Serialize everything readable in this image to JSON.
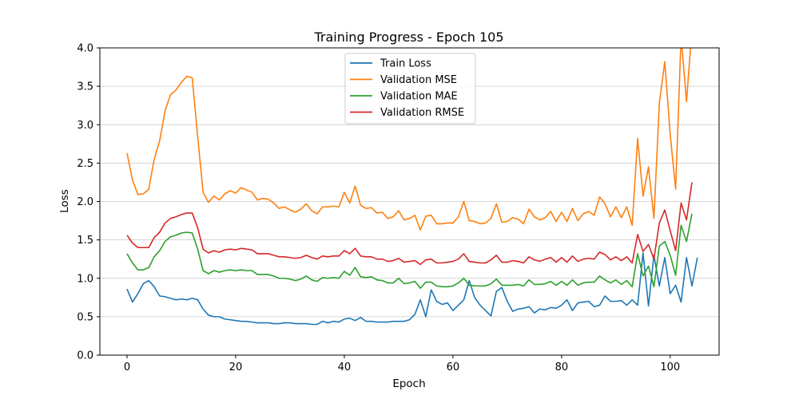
{
  "chart_data": {
    "type": "line",
    "title": "Training Progress - Epoch 105",
    "xlabel": "Epoch",
    "ylabel": "Loss",
    "xlim": [
      -5,
      109
    ],
    "ylim": [
      0,
      4.0
    ],
    "xticks": [
      0,
      20,
      40,
      60,
      80,
      100
    ],
    "yticks": [
      0.0,
      0.5,
      1.0,
      1.5,
      2.0,
      2.5,
      3.0,
      3.5,
      4.0
    ],
    "ytick_labels": [
      "0.0",
      "0.5",
      "1.0",
      "1.5",
      "2.0",
      "2.5",
      "3.0",
      "3.5",
      "4.0"
    ],
    "grid": "y",
    "legend_position": "top-center",
    "series": [
      {
        "name": "Train Loss",
        "color": "#1f77b4",
        "values": [
          0.86,
          0.69,
          0.8,
          0.93,
          0.97,
          0.89,
          0.77,
          0.76,
          0.74,
          0.72,
          0.73,
          0.72,
          0.74,
          0.72,
          0.6,
          0.52,
          0.5,
          0.5,
          0.47,
          0.46,
          0.45,
          0.44,
          0.44,
          0.43,
          0.42,
          0.42,
          0.42,
          0.41,
          0.41,
          0.42,
          0.42,
          0.41,
          0.41,
          0.41,
          0.4,
          0.4,
          0.44,
          0.42,
          0.44,
          0.43,
          0.47,
          0.48,
          0.45,
          0.49,
          0.44,
          0.44,
          0.43,
          0.43,
          0.43,
          0.44,
          0.44,
          0.44,
          0.46,
          0.53,
          0.72,
          0.5,
          0.85,
          0.7,
          0.66,
          0.68,
          0.58,
          0.65,
          0.72,
          0.97,
          0.75,
          0.65,
          0.58,
          0.51,
          0.83,
          0.88,
          0.7,
          0.57,
          0.6,
          0.61,
          0.63,
          0.55,
          0.6,
          0.59,
          0.62,
          0.61,
          0.65,
          0.72,
          0.58,
          0.68,
          0.69,
          0.7,
          0.63,
          0.65,
          0.77,
          0.7,
          0.7,
          0.71,
          0.65,
          0.72,
          0.65,
          1.33,
          0.64,
          1.3,
          0.9,
          1.27,
          0.8,
          0.91,
          0.69,
          1.27,
          0.9,
          1.27
        ]
      },
      {
        "name": "Validation MSE",
        "color": "#ff7f0e",
        "values": [
          2.63,
          2.28,
          2.09,
          2.1,
          2.16,
          2.55,
          2.79,
          3.18,
          3.39,
          3.45,
          3.55,
          3.63,
          3.61,
          2.85,
          2.12,
          1.99,
          2.07,
          2.02,
          2.1,
          2.14,
          2.11,
          2.18,
          2.15,
          2.12,
          2.02,
          2.04,
          2.03,
          1.98,
          1.91,
          1.93,
          1.89,
          1.86,
          1.9,
          1.97,
          1.88,
          1.84,
          1.93,
          1.93,
          1.94,
          1.93,
          2.12,
          1.98,
          2.2,
          1.95,
          1.91,
          1.92,
          1.85,
          1.86,
          1.78,
          1.8,
          1.88,
          1.76,
          1.78,
          1.82,
          1.63,
          1.81,
          1.82,
          1.71,
          1.71,
          1.72,
          1.72,
          1.8,
          2.0,
          1.75,
          1.74,
          1.71,
          1.72,
          1.78,
          1.97,
          1.73,
          1.74,
          1.79,
          1.77,
          1.71,
          1.9,
          1.8,
          1.76,
          1.79,
          1.87,
          1.74,
          1.86,
          1.74,
          1.91,
          1.75,
          1.84,
          1.87,
          1.82,
          2.06,
          1.97,
          1.8,
          1.93,
          1.79,
          1.93,
          1.69,
          2.82,
          2.07,
          2.45,
          1.78,
          3.28,
          3.82,
          2.87,
          2.16,
          4.15,
          3.3,
          4.25
        ]
      },
      {
        "name": "Validation MAE",
        "color": "#2ca02c",
        "values": [
          1.32,
          1.2,
          1.11,
          1.11,
          1.14,
          1.28,
          1.36,
          1.48,
          1.54,
          1.56,
          1.59,
          1.6,
          1.59,
          1.38,
          1.1,
          1.06,
          1.1,
          1.08,
          1.1,
          1.11,
          1.1,
          1.11,
          1.1,
          1.1,
          1.05,
          1.05,
          1.05,
          1.03,
          1.0,
          1.0,
          0.99,
          0.97,
          0.99,
          1.03,
          0.98,
          0.96,
          1.01,
          1.0,
          1.01,
          1.0,
          1.09,
          1.04,
          1.14,
          1.02,
          1.01,
          1.02,
          0.98,
          0.97,
          0.94,
          0.94,
          1.0,
          0.93,
          0.94,
          0.96,
          0.87,
          0.95,
          0.95,
          0.9,
          0.89,
          0.89,
          0.9,
          0.94,
          1.0,
          0.91,
          0.9,
          0.9,
          0.9,
          0.93,
          0.99,
          0.91,
          0.91,
          0.91,
          0.92,
          0.9,
          0.98,
          0.92,
          0.92,
          0.93,
          0.96,
          0.91,
          0.96,
          0.91,
          0.98,
          0.91,
          0.94,
          0.95,
          0.95,
          1.03,
          0.98,
          0.94,
          0.98,
          0.92,
          0.97,
          0.89,
          1.32,
          1.03,
          1.16,
          0.89,
          1.42,
          1.48,
          1.3,
          1.04,
          1.69,
          1.48,
          1.84
        ]
      },
      {
        "name": "Validation RMSE",
        "color": "#d62728",
        "values": [
          1.56,
          1.46,
          1.4,
          1.4,
          1.4,
          1.53,
          1.6,
          1.72,
          1.78,
          1.8,
          1.83,
          1.85,
          1.85,
          1.66,
          1.38,
          1.33,
          1.36,
          1.34,
          1.37,
          1.38,
          1.37,
          1.39,
          1.38,
          1.37,
          1.32,
          1.32,
          1.32,
          1.3,
          1.28,
          1.28,
          1.27,
          1.26,
          1.27,
          1.3,
          1.27,
          1.25,
          1.29,
          1.28,
          1.29,
          1.29,
          1.36,
          1.32,
          1.39,
          1.29,
          1.28,
          1.28,
          1.25,
          1.25,
          1.22,
          1.23,
          1.26,
          1.21,
          1.22,
          1.23,
          1.18,
          1.24,
          1.25,
          1.2,
          1.2,
          1.21,
          1.22,
          1.25,
          1.32,
          1.22,
          1.21,
          1.2,
          1.2,
          1.24,
          1.3,
          1.21,
          1.21,
          1.23,
          1.22,
          1.2,
          1.28,
          1.24,
          1.22,
          1.25,
          1.27,
          1.21,
          1.27,
          1.21,
          1.29,
          1.22,
          1.25,
          1.26,
          1.25,
          1.34,
          1.31,
          1.24,
          1.28,
          1.23,
          1.28,
          1.2,
          1.57,
          1.35,
          1.44,
          1.25,
          1.72,
          1.89,
          1.62,
          1.36,
          1.98,
          1.76,
          2.25
        ]
      }
    ]
  }
}
